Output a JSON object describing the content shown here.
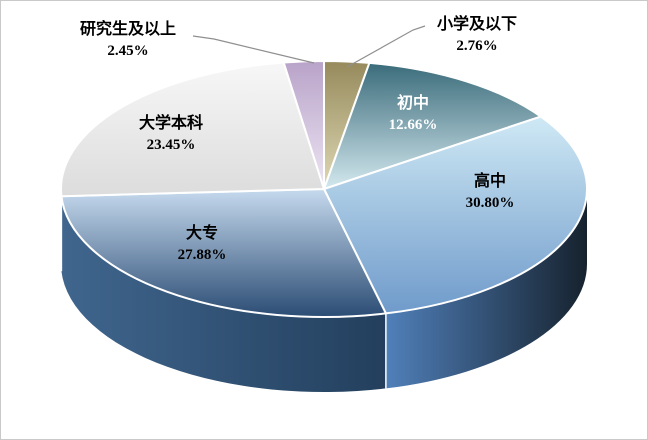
{
  "page": {
    "background": "#ffffff",
    "border_color": "#c9c9c9"
  },
  "chart_data": {
    "type": "pie",
    "style": "3d-pie",
    "title": "",
    "legend": "none",
    "direction": "clockwise",
    "start_angle_deg": 0,
    "unit": "%",
    "separator_color": "#ffffff",
    "leader_line_color": "#8f8f8f",
    "slices": [
      {
        "name": "小学及以下",
        "value": 2.76,
        "pct_label": "2.76%",
        "label_color": "#000000",
        "fill": [
          "#968a5c",
          "#ded8b4"
        ],
        "side": null,
        "leader_line": true
      },
      {
        "name": "初中",
        "value": 12.66,
        "pct_label": "12.66%",
        "label_color": "#ffffff",
        "fill": [
          "#3a6b7a",
          "#d3e8ee"
        ],
        "side": null,
        "leader_line": false
      },
      {
        "name": "高中",
        "value": 30.8,
        "pct_label": "30.80%",
        "label_color": "#000000",
        "fill": [
          "#cfe9f5",
          "#6f9aca"
        ],
        "side": [
          "#5080ba",
          "#16222e"
        ],
        "leader_line": false
      },
      {
        "name": "大专",
        "value": 27.88,
        "pct_label": "27.88%",
        "label_color": "#000000",
        "fill": [
          "#c6daee",
          "#2b4c74"
        ],
        "side": [
          "#40668e",
          "#233f5d"
        ],
        "leader_line": false
      },
      {
        "name": "大学本科",
        "value": 23.45,
        "pct_label": "23.45%",
        "label_color": "#000000",
        "fill": [
          "#f7f7f7",
          "#dcdcdc"
        ],
        "side": [
          "#ababab",
          "#cfcfcf"
        ],
        "leader_line": false
      },
      {
        "name": "研究生及以上",
        "value": 2.45,
        "pct_label": "2.45%",
        "label_color": "#000000",
        "fill": [
          "#b9a3c9",
          "#ece5f3"
        ],
        "side": null,
        "leader_line": true
      }
    ]
  }
}
